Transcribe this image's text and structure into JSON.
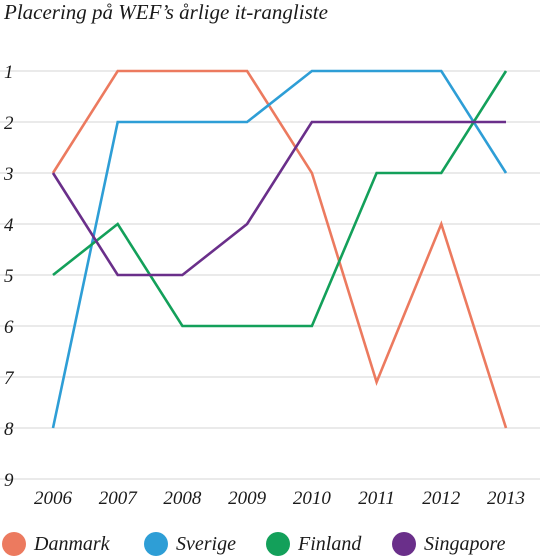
{
  "chart_data": {
    "type": "line",
    "title": "Placering på WEF’s årlige it-rangliste",
    "xlabel": "",
    "ylabel": "",
    "x": [
      "2006",
      "2007",
      "2008",
      "2009",
      "2010",
      "2011",
      "2012",
      "2013"
    ],
    "y_ticks": [
      "1",
      "2",
      "3",
      "4",
      "5",
      "6",
      "7",
      "8",
      "9"
    ],
    "ylim": [
      1,
      9
    ],
    "y_inverted": true,
    "grid": true,
    "legend_position": "bottom",
    "series": [
      {
        "name": "Danmark",
        "color": "#ec7a5f",
        "values": [
          3,
          1,
          1,
          1,
          3,
          7.1,
          4,
          8
        ]
      },
      {
        "name": "Sverige",
        "color": "#2e9ed6",
        "values": [
          8,
          2,
          2,
          2,
          1,
          1,
          1,
          3
        ]
      },
      {
        "name": "Finland",
        "color": "#13a05a",
        "values": [
          5,
          4,
          6,
          6,
          6,
          3,
          3,
          1
        ]
      },
      {
        "name": "Singapore",
        "color": "#6a2f8a",
        "values": [
          3,
          5,
          5,
          4,
          2,
          2,
          2,
          2
        ]
      }
    ]
  }
}
